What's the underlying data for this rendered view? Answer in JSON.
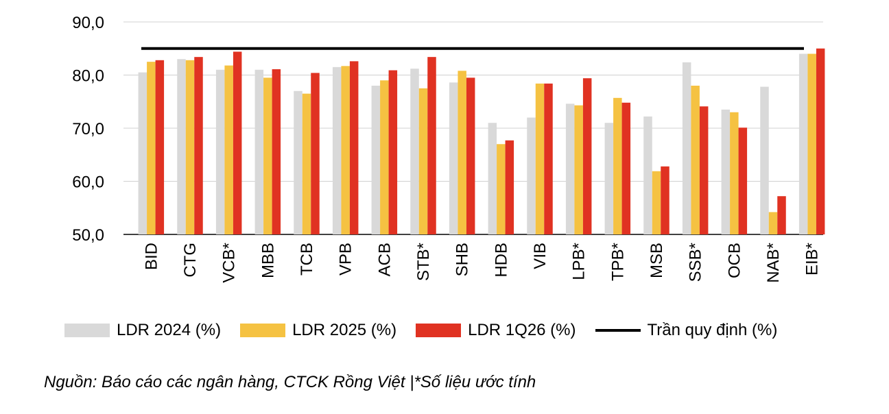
{
  "chart_data": {
    "type": "bar",
    "categories": [
      "BID",
      "CTG",
      "VCB*",
      "MBB",
      "TCB",
      "VPB",
      "ACB",
      "STB*",
      "SHB",
      "HDB",
      "VIB",
      "LPB*",
      "TPB*",
      "MSB",
      "SSB*",
      "OCB",
      "NAB*",
      "EIB*"
    ],
    "series": [
      {
        "name": "LDR 2024 (%)",
        "color": "#d9d9d9",
        "values": [
          80.5,
          83.0,
          81.0,
          81.0,
          77.0,
          81.5,
          78.0,
          81.2,
          78.6,
          71.0,
          72.0,
          74.6,
          71.0,
          72.2,
          82.4,
          73.5,
          77.8,
          84.0
        ]
      },
      {
        "name": "LDR 2025 (%)",
        "color": "#f5c242",
        "values": [
          82.5,
          82.8,
          81.8,
          79.5,
          76.5,
          81.7,
          79.0,
          77.5,
          80.8,
          67.0,
          78.4,
          74.3,
          75.7,
          61.9,
          78.0,
          73.0,
          54.2,
          84.0
        ]
      },
      {
        "name": "LDR 1Q26 (%)",
        "color": "#e03222",
        "values": [
          82.8,
          83.4,
          84.4,
          81.1,
          80.4,
          82.6,
          80.9,
          83.4,
          79.5,
          67.7,
          78.4,
          79.4,
          74.8,
          62.8,
          74.1,
          70.1,
          57.2,
          85.0
        ]
      }
    ],
    "reference_line": {
      "name": "Trần quy định (%)",
      "value": 85.0,
      "color": "#000000"
    },
    "ylim": [
      50.0,
      90.0
    ],
    "yticks": [
      "50,0",
      "60,0",
      "70,0",
      "80,0",
      "90,0"
    ],
    "ytick_values": [
      50,
      60,
      70,
      80,
      90
    ],
    "grid": true,
    "legend_position": "bottom",
    "title": "",
    "xlabel": "",
    "ylabel": ""
  },
  "source_note": "Nguồn: Báo cáo các ngân hàng, CTCK Rồng Việt |*Số liệu ước tính"
}
